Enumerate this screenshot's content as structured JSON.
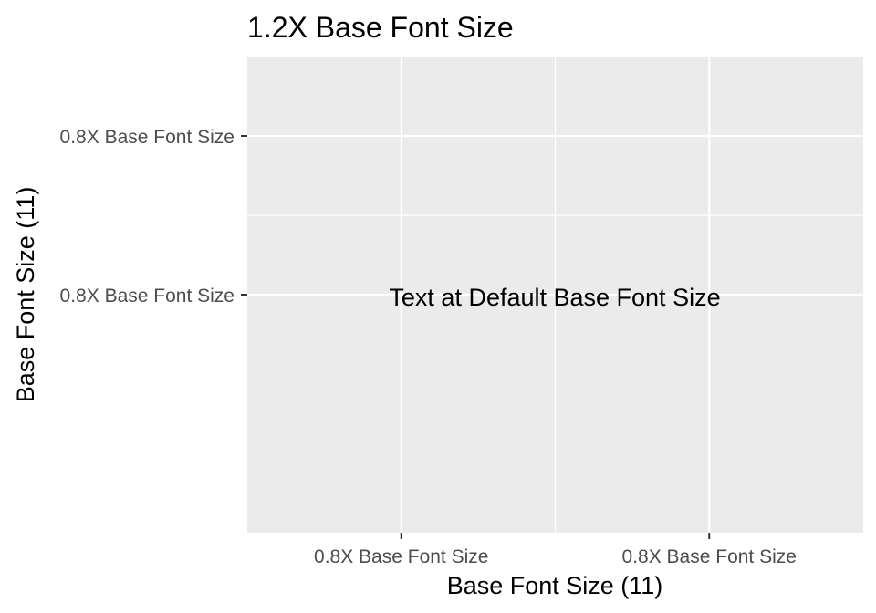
{
  "chart_data": {
    "type": "scatter",
    "title": "1.2X Base Font Size",
    "xlabel": "Base Font Size (11)",
    "ylabel": "Base Font Size (11)",
    "x_ticks": [
      "0.8X Base Font Size",
      "0.8X Base Font Size"
    ],
    "y_ticks": [
      "0.8X Base Font Size",
      "0.8X Base Font Size"
    ],
    "annotation": "Text at Default Base Font Size",
    "grid": true,
    "colors": {
      "panel_background": "#ebebeb",
      "grid_major": "#ffffff",
      "tick_text": "#4d4d4d",
      "text": "#000000"
    }
  }
}
